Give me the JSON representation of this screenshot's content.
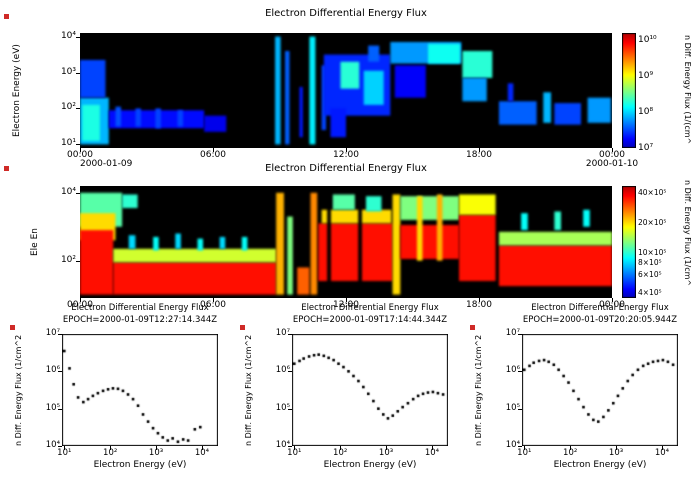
{
  "colors": {
    "plot_background": "#000000",
    "page_background": "#ffffff",
    "text": "#000000",
    "layout_marker": "#cf2a27"
  },
  "chart_data": [
    {
      "type": "heatmap",
      "title": "Electron Differential Energy Flux",
      "ylabel": "Electron Energy (eV)",
      "x_axis": {
        "ticks": [
          "00:00",
          "06:00",
          "12:00",
          "18:00",
          "00:00"
        ],
        "tick_hours": [
          0,
          6,
          12,
          18,
          24
        ],
        "range_hours": [
          0,
          24
        ],
        "date_start": "2000-01-09",
        "date_end": "2000-01-10"
      },
      "y_axis": {
        "ticks": [
          "10⁴",
          "10³",
          "10²",
          "10¹"
        ],
        "tick_logs": [
          4,
          3,
          2,
          1
        ],
        "log_range": [
          0.9,
          4.1
        ]
      },
      "colorbar": {
        "label": "n Diff. Energy Flux (1/(cm^",
        "ticks": [
          "10¹⁰",
          "10⁹",
          "10⁸",
          "10⁷"
        ],
        "tick_logs": [
          10,
          9,
          8,
          7
        ],
        "log_range": [
          7,
          10.2
        ]
      },
      "features": [
        {
          "t": [
            0,
            1.3
          ],
          "e": [
            1.0,
            2.3
          ],
          "log10_flux": 7.9
        },
        {
          "t": [
            0.1,
            0.9
          ],
          "e": [
            1.1,
            2.1
          ],
          "log10_flux": 8.25
        },
        {
          "t": [
            0,
            1.15
          ],
          "e": [
            2.3,
            3.35
          ],
          "log10_flux": 7.5
        },
        {
          "t": [
            1.3,
            5.6
          ],
          "e": [
            1.45,
            1.95
          ],
          "log10_flux": 7.3
        },
        {
          "t": [
            1.6,
            1.85
          ],
          "e": [
            1.5,
            2.05
          ],
          "log10_flux": 7.55
        },
        {
          "t": [
            2.5,
            2.75
          ],
          "e": [
            1.5,
            2.0
          ],
          "log10_flux": 7.5
        },
        {
          "t": [
            3.4,
            3.65
          ],
          "e": [
            1.45,
            2.0
          ],
          "log10_flux": 7.5
        },
        {
          "t": [
            4.4,
            4.65
          ],
          "e": [
            1.5,
            1.95
          ],
          "log10_flux": 7.5
        },
        {
          "t": [
            5.6,
            6.6
          ],
          "e": [
            1.35,
            1.8
          ],
          "log10_flux": 7.2
        },
        {
          "t": [
            8.8,
            9.05
          ],
          "e": [
            1.0,
            4.0
          ],
          "log10_flux": 7.9
        },
        {
          "t": [
            9.25,
            9.45
          ],
          "e": [
            1.0,
            3.6
          ],
          "log10_flux": 7.6
        },
        {
          "t": [
            9.9,
            10.05
          ],
          "e": [
            1.2,
            2.6
          ],
          "log10_flux": 7.35
        },
        {
          "t": [
            10.35,
            10.62
          ],
          "e": [
            1.0,
            4.0
          ],
          "log10_flux": 8.1
        },
        {
          "t": [
            10.9,
            11.1
          ],
          "e": [
            1.4,
            3.2
          ],
          "log10_flux": 7.5
        },
        {
          "t": [
            11.0,
            14.0
          ],
          "e": [
            1.8,
            3.5
          ],
          "log10_flux": 7.4
        },
        {
          "t": [
            11.3,
            12.0
          ],
          "e": [
            1.2,
            2.0
          ],
          "log10_flux": 7.35
        },
        {
          "t": [
            11.75,
            12.6
          ],
          "e": [
            2.55,
            3.3
          ],
          "log10_flux": 8.3
        },
        {
          "t": [
            12.8,
            13.7
          ],
          "e": [
            2.1,
            3.05
          ],
          "log10_flux": 8.0
        },
        {
          "t": [
            13.0,
            13.5
          ],
          "e": [
            3.3,
            3.75
          ],
          "log10_flux": 7.6
        },
        {
          "t": [
            14.0,
            17.2
          ],
          "e": [
            3.25,
            3.85
          ],
          "log10_flux": 7.8
        },
        {
          "t": [
            14.2,
            15.6
          ],
          "e": [
            2.3,
            3.2
          ],
          "log10_flux": 7.25
        },
        {
          "t": [
            15.7,
            17.15
          ],
          "e": [
            3.25,
            3.8
          ],
          "log10_flux": 8.2
        },
        {
          "t": [
            17.25,
            18.6
          ],
          "e": [
            2.85,
            3.6
          ],
          "log10_flux": 8.3
        },
        {
          "t": [
            17.25,
            18.35
          ],
          "e": [
            2.2,
            2.85
          ],
          "log10_flux": 7.8
        },
        {
          "t": [
            18.9,
            20.6
          ],
          "e": [
            1.55,
            2.2
          ],
          "log10_flux": 7.6
        },
        {
          "t": [
            20.9,
            21.25
          ],
          "e": [
            1.6,
            2.45
          ],
          "log10_flux": 7.9
        },
        {
          "t": [
            21.4,
            22.6
          ],
          "e": [
            1.55,
            2.15
          ],
          "log10_flux": 7.5
        },
        {
          "t": [
            22.9,
            23.95
          ],
          "e": [
            1.6,
            2.3
          ],
          "log10_flux": 7.8
        },
        {
          "t": [
            19.3,
            19.55
          ],
          "e": [
            2.2,
            2.7
          ],
          "log10_flux": 7.4
        }
      ]
    },
    {
      "type": "heatmap",
      "title": "Electron Differential Energy Flux",
      "ylabel": "Ele En",
      "x_axis": {
        "ticks": [
          "00:00",
          "06:00",
          "12:00",
          "18:00",
          "00:00"
        ],
        "tick_hours": [
          0,
          6,
          12,
          18,
          24
        ],
        "range_hours": [
          0,
          24
        ]
      },
      "y_axis": {
        "ticks": [
          "10⁴",
          "10²"
        ],
        "tick_logs": [
          4,
          2
        ],
        "log_range": [
          0.9,
          4.2
        ]
      },
      "colorbar": {
        "label": "n Diff. Energy Flux (1/cm^",
        "ticks": [
          "40×10⁵",
          "20×10⁵",
          "10×10⁵",
          "8×10⁵",
          "6×10⁵",
          "4×10⁵"
        ],
        "tick_logs": [
          6.602,
          6.301,
          6.0,
          5.903,
          5.778,
          5.602
        ],
        "log_range": [
          5.54,
          6.66
        ],
        "small_ticks": true
      },
      "features": [
        {
          "t": [
            0,
            1.9
          ],
          "e": [
            3.0,
            4.0
          ],
          "log10_flux": 6.05
        },
        {
          "t": [
            0,
            1.6
          ],
          "e": [
            2.6,
            3.4
          ],
          "log10_flux": 6.3
        },
        {
          "t": [
            0,
            1.5
          ],
          "e": [
            1.0,
            2.9
          ],
          "log10_flux": 6.55
        },
        {
          "t": [
            1.9,
            2.6
          ],
          "e": [
            3.55,
            3.95
          ],
          "log10_flux": 6.0
        },
        {
          "t": [
            1.5,
            8.85
          ],
          "e": [
            1.0,
            1.95
          ],
          "log10_flux": 6.55
        },
        {
          "t": [
            1.5,
            8.85
          ],
          "e": [
            1.95,
            2.35
          ],
          "log10_flux": 6.2
        },
        {
          "t": [
            2.2,
            2.5
          ],
          "e": [
            2.35,
            2.75
          ],
          "log10_flux": 5.9
        },
        {
          "t": [
            3.3,
            3.55
          ],
          "e": [
            2.3,
            2.7
          ],
          "log10_flux": 5.95
        },
        {
          "t": [
            4.3,
            4.55
          ],
          "e": [
            2.35,
            2.8
          ],
          "log10_flux": 5.9
        },
        {
          "t": [
            5.3,
            5.55
          ],
          "e": [
            2.3,
            2.65
          ],
          "log10_flux": 5.95
        },
        {
          "t": [
            6.3,
            6.55
          ],
          "e": [
            2.35,
            2.7
          ],
          "log10_flux": 5.9
        },
        {
          "t": [
            7.3,
            7.55
          ],
          "e": [
            2.3,
            2.7
          ],
          "log10_flux": 5.95
        },
        {
          "t": [
            8.85,
            9.2
          ],
          "e": [
            1.0,
            4.0
          ],
          "log10_flux": 6.35
        },
        {
          "t": [
            9.35,
            9.6
          ],
          "e": [
            1.0,
            3.3
          ],
          "log10_flux": 6.1
        },
        {
          "t": [
            9.8,
            10.35
          ],
          "e": [
            1.0,
            1.8
          ],
          "log10_flux": 6.45
        },
        {
          "t": [
            10.4,
            10.7
          ],
          "e": [
            1.0,
            4.0
          ],
          "log10_flux": 6.4
        },
        {
          "t": [
            10.75,
            14.1
          ],
          "e": [
            1.4,
            3.1
          ],
          "log10_flux": 6.55
        },
        {
          "t": [
            10.9,
            14.05
          ],
          "e": [
            3.1,
            3.5
          ],
          "log10_flux": 6.3
        },
        {
          "t": [
            11.4,
            12.4
          ],
          "e": [
            3.5,
            3.95
          ],
          "log10_flux": 6.05
        },
        {
          "t": [
            12.9,
            13.6
          ],
          "e": [
            3.45,
            3.9
          ],
          "log10_flux": 6.0
        },
        {
          "t": [
            11.15,
            11.32
          ],
          "e": [
            1.0,
            4.0
          ],
          "log10_flux": null
        },
        {
          "t": [
            12.55,
            12.72
          ],
          "e": [
            1.0,
            4.0
          ],
          "log10_flux": null
        },
        {
          "t": [
            14.1,
            14.45
          ],
          "e": [
            1.0,
            3.95
          ],
          "log10_flux": 6.3
        },
        {
          "t": [
            14.45,
            17.1
          ],
          "e": [
            2.05,
            3.05
          ],
          "log10_flux": 6.55
        },
        {
          "t": [
            14.45,
            17.1
          ],
          "e": [
            3.2,
            3.9
          ],
          "log10_flux": 6.1
        },
        {
          "t": [
            15.2,
            15.45
          ],
          "e": [
            2.0,
            3.9
          ],
          "log10_flux": 6.3
        },
        {
          "t": [
            16.1,
            16.35
          ],
          "e": [
            2.0,
            3.95
          ],
          "log10_flux": 6.35
        },
        {
          "t": [
            17.1,
            18.75
          ],
          "e": [
            1.4,
            3.35
          ],
          "log10_flux": 6.55
        },
        {
          "t": [
            17.1,
            18.75
          ],
          "e": [
            3.35,
            3.95
          ],
          "log10_flux": 6.25
        },
        {
          "t": [
            18.9,
            24
          ],
          "e": [
            1.25,
            2.45
          ],
          "log10_flux": 6.55
        },
        {
          "t": [
            18.9,
            24
          ],
          "e": [
            2.45,
            2.85
          ],
          "log10_flux": 6.15
        },
        {
          "t": [
            19.9,
            20.2
          ],
          "e": [
            2.9,
            3.4
          ],
          "log10_flux": 5.95
        },
        {
          "t": [
            21.4,
            21.7
          ],
          "e": [
            2.9,
            3.45
          ],
          "log10_flux": 6.0
        },
        {
          "t": [
            22.7,
            23.0
          ],
          "e": [
            3.0,
            3.5
          ],
          "log10_flux": 5.95
        }
      ]
    },
    {
      "type": "scatter",
      "title": "Electron Differential Energy Flux",
      "subtitle": "EPOCH=2000-01-09T12:27:14.344Z",
      "xlabel": "Electron Energy (eV)",
      "ylabel": "n Diff. Energy Flux (1/cm^2",
      "x_axis": {
        "ticks": [
          "10¹",
          "10²",
          "10³",
          "10⁴"
        ],
        "tick_logs": [
          1,
          2,
          3,
          4
        ],
        "log_range": [
          0.95,
          4.35
        ]
      },
      "y_axis": {
        "ticks": [
          "10⁷",
          "10⁶",
          "10⁵",
          "10⁴"
        ],
        "tick_logs": [
          7,
          6,
          5,
          4
        ],
        "log_range": [
          4,
          7
        ]
      },
      "points": {
        "energy_eV": [
          10,
          13,
          16,
          20,
          26,
          33,
          42,
          54,
          70,
          90,
          115,
          148,
          190,
          245,
          315,
          405,
          520,
          670,
          860,
          1100,
          1400,
          1800,
          2300,
          3000,
          3900,
          5000,
          7000,
          9200
        ],
        "flux": [
          3500000.0,
          1200000.0,
          450000.0,
          200000.0,
          150000.0,
          180000.0,
          220000.0,
          260000.0,
          300000.0,
          330000.0,
          350000.0,
          340000.0,
          300000.0,
          240000.0,
          180000.0,
          120000.0,
          70000.0,
          45000.0,
          30000.0,
          22000.0,
          17000.0,
          14000.0,
          16000.0,
          13000.0,
          15000.0,
          14000.0,
          28000.0,
          32000.0
        ]
      }
    },
    {
      "type": "scatter",
      "title": "Electron Differential Energy Flux",
      "subtitle": "EPOCH=2000-01-09T17:14:44.344Z",
      "xlabel": "Electron Energy (eV)",
      "ylabel": "n Diff. Energy Flux (1/cm^2",
      "x_axis": {
        "ticks": [
          "10¹",
          "10²",
          "10³",
          "10⁴"
        ],
        "tick_logs": [
          1,
          2,
          3,
          4
        ],
        "log_range": [
          0.95,
          4.35
        ]
      },
      "y_axis": {
        "ticks": [
          "10⁷",
          "10⁶",
          "10⁵",
          "10⁴"
        ],
        "tick_logs": [
          7,
          6,
          5,
          4
        ],
        "log_range": [
          4,
          7
        ]
      },
      "points": {
        "energy_eV": [
          10,
          13,
          16,
          21,
          27,
          34,
          44,
          56,
          72,
          92,
          118,
          152,
          195,
          250,
          320,
          410,
          530,
          680,
          870,
          1100,
          1400,
          1800,
          2300,
          3000,
          3900,
          5000,
          6400,
          8200,
          10500,
          13500,
          17500
        ],
        "flux": [
          1600000.0,
          1900000.0,
          2200000.0,
          2500000.0,
          2700000.0,
          2800000.0,
          2600000.0,
          2300000.0,
          2000000.0,
          1600000.0,
          1300000.0,
          1000000.0,
          750000.0,
          550000.0,
          380000.0,
          250000.0,
          160000.0,
          100000.0,
          70000.0,
          55000.0,
          65000.0,
          85000.0,
          110000.0,
          140000.0,
          180000.0,
          220000.0,
          250000.0,
          270000.0,
          280000.0,
          260000.0,
          240000.0
        ]
      }
    },
    {
      "type": "scatter",
      "title": "Electron Differential Energy Flux",
      "subtitle": "EPOCH=2000-01-09T20:20:05.944Z",
      "xlabel": "Electron Energy (eV)",
      "ylabel": "n Diff. Energy Flux (1/cm^2",
      "x_axis": {
        "ticks": [
          "10¹",
          "10²",
          "10³",
          "10⁴"
        ],
        "tick_logs": [
          1,
          2,
          3,
          4
        ],
        "log_range": [
          0.95,
          4.35
        ]
      },
      "y_axis": {
        "ticks": [
          "10⁷",
          "10⁶",
          "10⁵",
          "10⁴"
        ],
        "tick_logs": [
          7,
          6,
          5,
          4
        ],
        "log_range": [
          4,
          7
        ]
      },
      "points": {
        "energy_eV": [
          10,
          13,
          16,
          21,
          27,
          34,
          44,
          56,
          72,
          92,
          118,
          152,
          195,
          250,
          320,
          410,
          530,
          680,
          870,
          1100,
          1400,
          1800,
          2300,
          3000,
          3900,
          5000,
          6400,
          8200,
          10500,
          13500,
          17500
        ],
        "flux": [
          1100000.0,
          1400000.0,
          1700000.0,
          1900000.0,
          2000000.0,
          1800000.0,
          1500000.0,
          1100000.0,
          750000.0,
          500000.0,
          300000.0,
          180000.0,
          110000.0,
          70000.0,
          50000.0,
          45000.0,
          60000.0,
          90000.0,
          140000.0,
          220000.0,
          350000.0,
          550000.0,
          800000.0,
          1100000.0,
          1400000.0,
          1600000.0,
          1800000.0,
          1900000.0,
          2000000.0,
          1800000.0,
          1500000.0
        ]
      }
    }
  ]
}
